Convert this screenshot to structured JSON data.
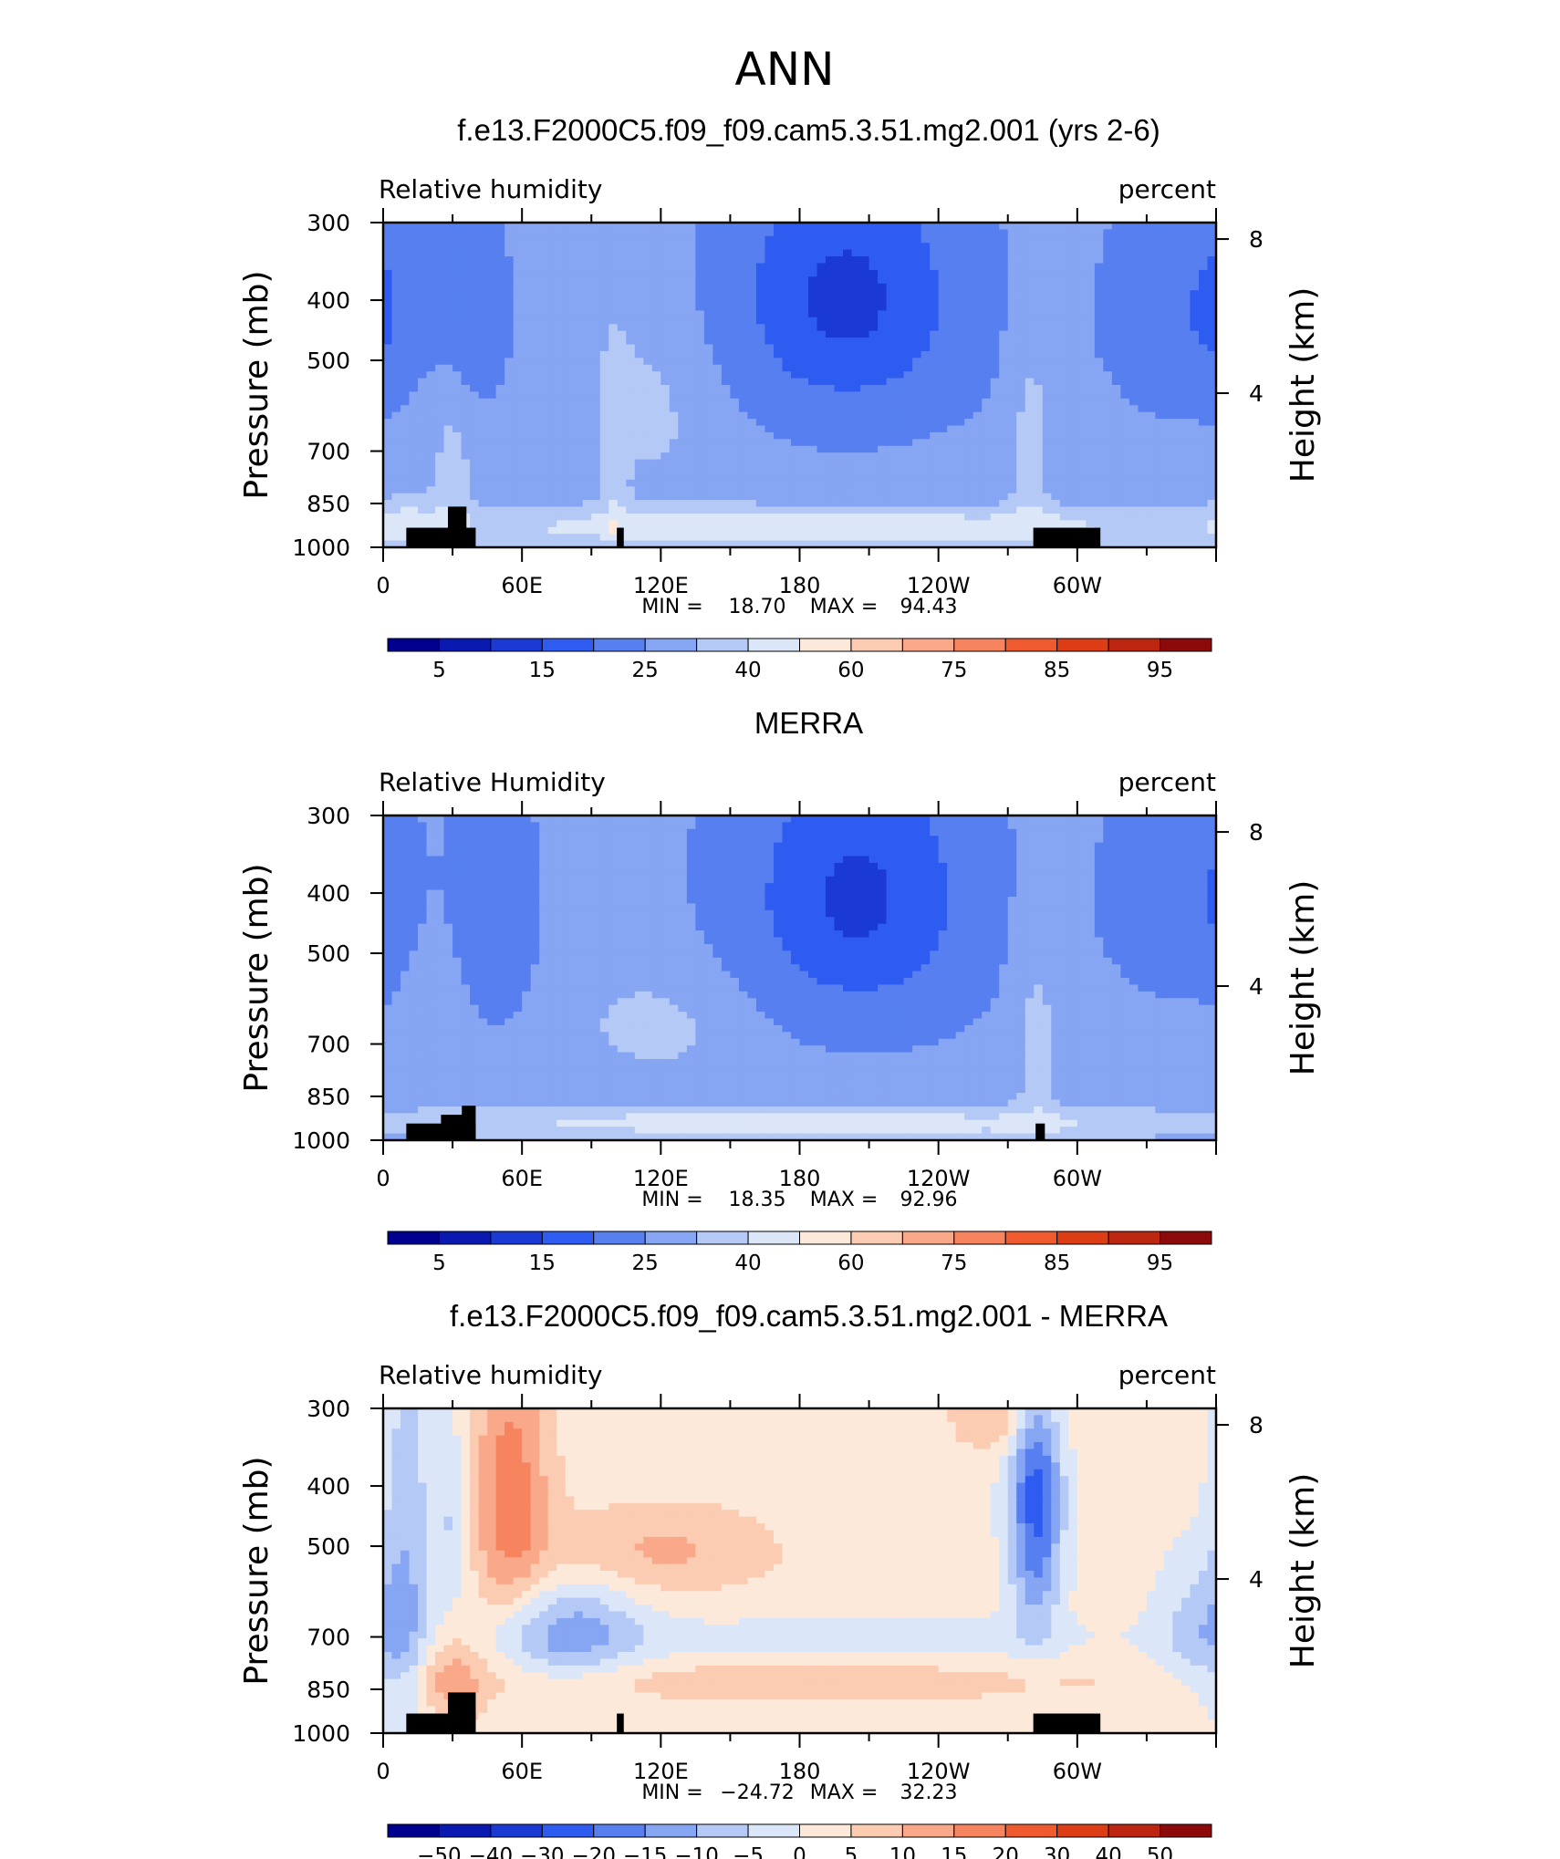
{
  "figure": {
    "title": "ANN"
  },
  "chart_data": [
    {
      "type": "heatmap",
      "title": "f.e13.F2000C5.f09_f09.cam5.3.51.mg2.001 (yrs 2-6)",
      "left_label": "Relative humidity",
      "right_label": "percent",
      "ylabel": "Pressure (mb)",
      "y2label": "Height (km)",
      "y_ticks": [
        "300",
        "400",
        "500",
        "700",
        "850",
        "1000"
      ],
      "y2_ticks": [
        "8",
        "4"
      ],
      "x_ticks": [
        "0",
        "60E",
        "120E",
        "180",
        "120W",
        "60W"
      ],
      "stats": {
        "min_label": "MIN =",
        "min": "18.70",
        "max_label": "MAX =",
        "max": "94.43"
      },
      "colorbar": {
        "labels": [
          "5",
          "15",
          "25",
          "40",
          "60",
          "75",
          "85",
          "95"
        ],
        "colors": [
          "#00008f",
          "#0a1ab0",
          "#1a3ad3",
          "#2f5cf0",
          "#577ff0",
          "#86a5f2",
          "#b4c9f5",
          "#dbe7f8",
          "#fde9da",
          "#fbcbb2",
          "#f9a98a",
          "#f6845f",
          "#ef5a2f",
          "#dd3d14",
          "#bc2510",
          "#8c0a0a"
        ]
      },
      "fields": {
        "base": 66,
        "blobs": [
          {
            "lon": 200,
            "p": 400,
            "dx": 38,
            "dy": 150,
            "v": -45
          },
          {
            "lon": 345,
            "p": 420,
            "dx": 22,
            "dy": 120,
            "v": -24
          },
          {
            "lon": 38,
            "p": 420,
            "dx": 11,
            "dy": 110,
            "v": -24
          },
          {
            "lon": 0,
            "p": 400,
            "dx": 6,
            "dy": 120,
            "v": -12
          },
          {
            "lon": 115,
            "p": 580,
            "dx": 24,
            "dy": 170,
            "v": 13
          },
          {
            "lon": 280,
            "p": 640,
            "dx": 7,
            "dy": 260,
            "v": 14
          },
          {
            "lon": 30,
            "p": 720,
            "dx": 7,
            "dy": 220,
            "v": 13
          },
          {
            "lon": 100,
            "p": 760,
            "dx": 4,
            "dy": 200,
            "v": 10
          },
          {
            "lon": 190,
            "p": 930,
            "dx": 150,
            "dy": 55,
            "v": 26
          },
          {
            "lon": 10,
            "p": 920,
            "dx": 10,
            "dy": 90,
            "v": 14
          }
        ]
      },
      "terrain": [
        [
          10,
          40,
          930
        ],
        [
          28,
          36,
          860
        ],
        [
          101,
          104,
          930
        ],
        [
          281,
          310,
          930
        ]
      ]
    },
    {
      "type": "heatmap",
      "title": "MERRA",
      "left_label": "Relative Humidity",
      "right_label": "percent",
      "ylabel": "Pressure (mb)",
      "y2label": "Height (km)",
      "y_ticks": [
        "300",
        "400",
        "500",
        "700",
        "850",
        "1000"
      ],
      "y2_ticks": [
        "8",
        "4"
      ],
      "x_ticks": [
        "0",
        "60E",
        "120E",
        "180",
        "120W",
        "60W"
      ],
      "stats": {
        "min_label": "MIN =",
        "min": "18.35",
        "max_label": "MAX =",
        "max": "92.96"
      },
      "colorbar": {
        "labels": [
          "5",
          "15",
          "25",
          "40",
          "60",
          "75",
          "85",
          "95"
        ],
        "colors": [
          "#00008f",
          "#0a1ab0",
          "#1a3ad3",
          "#2f5cf0",
          "#577ff0",
          "#86a5f2",
          "#b4c9f5",
          "#dbe7f8",
          "#fde9da",
          "#fbcbb2",
          "#f9a98a",
          "#f6845f",
          "#ef5a2f",
          "#dd3d14",
          "#bc2510",
          "#8c0a0a"
        ]
      },
      "fields": {
        "base": 66,
        "blobs": [
          {
            "lon": 205,
            "p": 410,
            "dx": 38,
            "dy": 160,
            "v": -44
          },
          {
            "lon": 345,
            "p": 400,
            "dx": 22,
            "dy": 120,
            "v": -22
          },
          {
            "lon": 48,
            "p": 430,
            "dx": 12,
            "dy": 140,
            "v": -26
          },
          {
            "lon": 0,
            "p": 420,
            "dx": 5,
            "dy": 110,
            "v": -10
          },
          {
            "lon": 120,
            "p": 650,
            "dx": 30,
            "dy": 110,
            "v": 13
          },
          {
            "lon": 282,
            "p": 650,
            "dx": 8,
            "dy": 220,
            "v": 14
          },
          {
            "lon": 26,
            "p": 650,
            "dx": 9,
            "dy": 150,
            "v": 9
          },
          {
            "lon": 185,
            "p": 940,
            "dx": 160,
            "dy": 45,
            "v": 24
          }
        ]
      },
      "terrain": [
        [
          10,
          40,
          940
        ],
        [
          25,
          38,
          910
        ],
        [
          34,
          40,
          880
        ],
        [
          282,
          286,
          940
        ]
      ]
    },
    {
      "type": "heatmap",
      "title": "f.e13.F2000C5.f09_f09.cam5.3.51.mg2.001 - MERRA",
      "left_label": "Relative humidity",
      "right_label": "percent",
      "ylabel": "Pressure (mb)",
      "y2label": "Height (km)",
      "y_ticks": [
        "300",
        "400",
        "500",
        "700",
        "850",
        "1000"
      ],
      "y2_ticks": [
        "8",
        "4"
      ],
      "x_ticks": [
        "0",
        "60E",
        "120E",
        "180",
        "120W",
        "60W"
      ],
      "stats": {
        "min_label": "MIN =",
        "min": "−24.72",
        "max_label": "MAX =",
        "max": "32.23"
      },
      "colorbar": {
        "labels": [
          "−50",
          "−40",
          "−30",
          "−20",
          "−15",
          "−10",
          "−5",
          "0",
          "5",
          "10",
          "15",
          "20",
          "30",
          "40",
          "50"
        ],
        "colors": [
          "#00008f",
          "#0a1ab0",
          "#1a3ad3",
          "#2f5cf0",
          "#577ff0",
          "#86a5f2",
          "#b4c9f5",
          "#dbe7f8",
          "#fde9da",
          "#fbcbb2",
          "#f9a98a",
          "#f6845f",
          "#ef5a2f",
          "#dd3d14",
          "#bc2510",
          "#8c0a0a"
        ]
      },
      "fields": {
        "base": 2,
        "blobs": [
          {
            "lon": 282,
            "p": 420,
            "dx": 8,
            "dy": 170,
            "v": -24
          },
          {
            "lon": 80,
            "p": 690,
            "dx": 22,
            "dy": 90,
            "v": -14
          },
          {
            "lon": 10,
            "p": 520,
            "dx": 8,
            "dy": 300,
            "v": -10
          },
          {
            "lon": 30,
            "p": 460,
            "dx": 6,
            "dy": 110,
            "v": -8
          },
          {
            "lon": 355,
            "p": 680,
            "dx": 14,
            "dy": 120,
            "v": -10
          },
          {
            "lon": 200,
            "p": 700,
            "dx": 90,
            "dy": 40,
            "v": -4
          },
          {
            "lon": 55,
            "p": 420,
            "dx": 12,
            "dy": 160,
            "v": 16
          },
          {
            "lon": 120,
            "p": 510,
            "dx": 35,
            "dy": 60,
            "v": 9
          },
          {
            "lon": 30,
            "p": 820,
            "dx": 10,
            "dy": 100,
            "v": 10
          },
          {
            "lon": 270,
            "p": 310,
            "dx": 16,
            "dy": 30,
            "v": 10
          },
          {
            "lon": 180,
            "p": 830,
            "dx": 110,
            "dy": 45,
            "v": 6
          }
        ]
      },
      "terrain": [
        [
          10,
          40,
          930
        ],
        [
          28,
          40,
          860
        ],
        [
          101,
          104,
          930
        ],
        [
          281,
          310,
          930
        ]
      ]
    }
  ]
}
